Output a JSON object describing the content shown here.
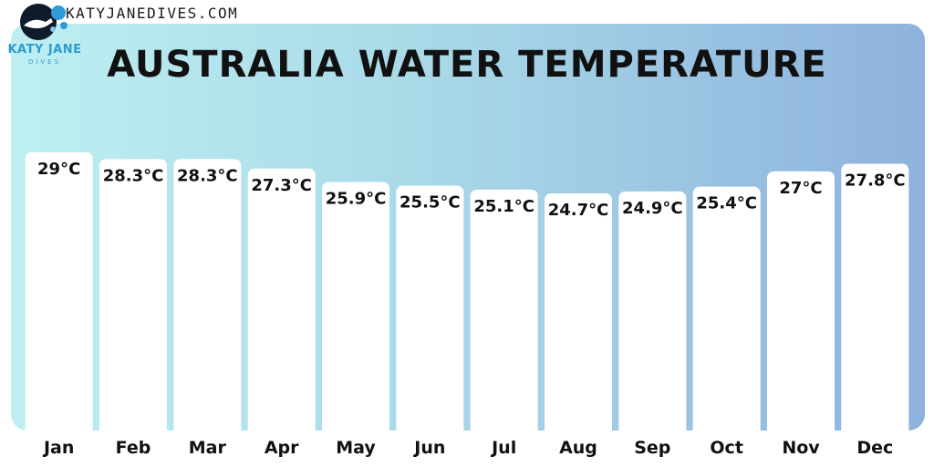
{
  "site": {
    "url": "KATYJANEDIVES.COM",
    "brand_name": "KATY JANE",
    "brand_sub": "DIVES"
  },
  "colors": {
    "panel_left": "#bdeff2",
    "panel_right": "#8eb2dd",
    "bar": "#ffffff",
    "brand": "#2d9bd6"
  },
  "icons": {
    "logo": "scuba-diver-icon"
  },
  "chart_data": {
    "type": "bar",
    "title": "AUSTRALIA WATER TEMPERATURE",
    "categories": [
      "Jan",
      "Feb",
      "Mar",
      "Apr",
      "May",
      "Jun",
      "Jul",
      "Aug",
      "Sep",
      "Oct",
      "Nov",
      "Dec"
    ],
    "values": [
      29,
      28.3,
      28.3,
      27.3,
      25.9,
      25.5,
      25.1,
      24.7,
      24.9,
      25.4,
      27,
      27.8
    ],
    "labels": [
      "29°C",
      "28.3°C",
      "28.3°C",
      "27.3°C",
      "25.9°C",
      "25.5°C",
      "25.1°C",
      "24.7°C",
      "24.9°C",
      "25.4°C",
      "27°C",
      "27.8°C"
    ],
    "unit": "°C",
    "xlabel": "",
    "ylabel": "",
    "grid": false,
    "legend": "none"
  }
}
